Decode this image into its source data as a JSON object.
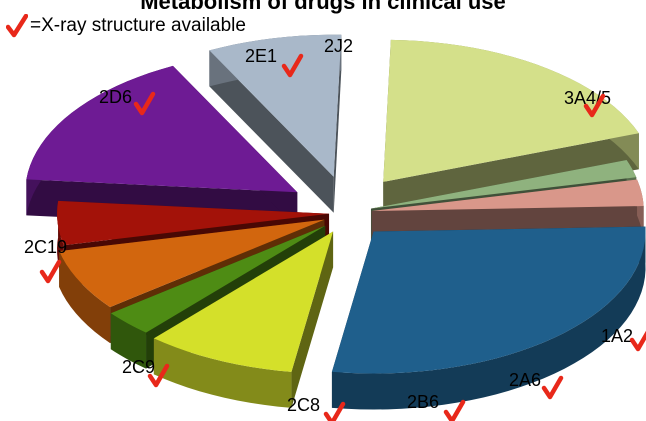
{
  "chart_data": {
    "type": "pie",
    "title": "Metabolism of drugs in clinical use",
    "legend_note": "=X-ray structure available",
    "legend_icon": "red-checkmark-icon",
    "check_color": "#e8281a",
    "slices": [
      {
        "label": "3A4/5",
        "value": 28,
        "xray": true,
        "color": "#1f5f8c"
      },
      {
        "label": "1A2",
        "value": 9,
        "xray": true,
        "color": "#d4e02a"
      },
      {
        "label": "2A6",
        "value": 3,
        "xray": true,
        "color": "#4e8c14"
      },
      {
        "label": "2B6",
        "value": 7,
        "xray": true,
        "color": "#d2660e"
      },
      {
        "label": "2C8",
        "value": 5,
        "xray": true,
        "color": "#a31209"
      },
      {
        "label": "2C9",
        "value": 16,
        "xray": true,
        "color": "#6e1b94"
      },
      {
        "label": "2C19",
        "value": 8,
        "xray": true,
        "color": "#a9b8c9"
      },
      {
        "label": "2D6",
        "value": 19,
        "xray": true,
        "color": "#d4e08a"
      },
      {
        "label": "2E1",
        "value": 2,
        "xray": true,
        "color": "#8fb27e"
      },
      {
        "label": "2J2",
        "value": 3,
        "xray": false,
        "color": "#d9978a"
      }
    ]
  }
}
